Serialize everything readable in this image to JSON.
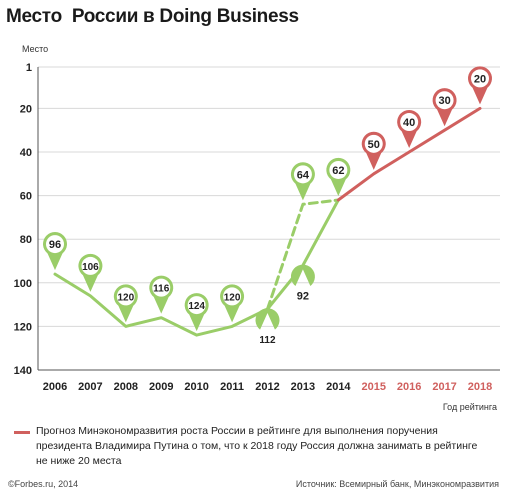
{
  "header": {
    "title": "Место  России в Doing Business"
  },
  "chart_data": {
    "type": "line",
    "title": "Место  России в Doing Business",
    "ylabel": "Место",
    "xlabel": "Год рейтинга",
    "y_inverted": true,
    "ylim": [
      1,
      140
    ],
    "yticks": [
      1,
      20,
      40,
      60,
      80,
      100,
      120,
      140
    ],
    "x": [
      2006,
      2007,
      2008,
      2009,
      2010,
      2011,
      2012,
      2013,
      2014,
      2015,
      2016,
      2017,
      2018
    ],
    "x_colors": [
      "#222222",
      "#222222",
      "#222222",
      "#222222",
      "#222222",
      "#222222",
      "#222222",
      "#222222",
      "#222222",
      "#d0605e",
      "#d0605e",
      "#d0605e",
      "#d0605e"
    ],
    "series": [
      {
        "style": "solid",
        "color": "#9acd68",
        "points": [
          [
            2006,
            96
          ],
          [
            2007,
            106
          ],
          [
            2008,
            120
          ],
          [
            2009,
            116
          ],
          [
            2010,
            124
          ],
          [
            2011,
            120
          ],
          [
            2012,
            112
          ],
          [
            2013,
            92
          ],
          [
            2014,
            62
          ]
        ]
      },
      {
        "style": "dashed",
        "color": "#9acd68",
        "points": [
          [
            2012,
            112
          ],
          [
            2013,
            64
          ],
          [
            2014,
            62
          ]
        ]
      },
      {
        "name": "Прогноз Минэкономразвития роста России в рейтинге для выполнения поручения президента Владимира Путина о том, что к 2018 году Россия должна занимать в рейтинге не ниже 20 места",
        "style": "solid",
        "color": "#d0605e",
        "points": [
          [
            2014,
            62
          ],
          [
            2015,
            50
          ],
          [
            2016,
            40
          ],
          [
            2017,
            30
          ],
          [
            2018,
            20
          ]
        ]
      }
    ],
    "markers": [
      {
        "x": 2006,
        "value": 96,
        "label": "96",
        "dir": "up",
        "color": "#9acd68"
      },
      {
        "x": 2007,
        "value": 106,
        "label": "106",
        "dir": "up",
        "color": "#9acd68"
      },
      {
        "x": 2008,
        "value": 120,
        "label": "120",
        "dir": "up",
        "color": "#9acd68"
      },
      {
        "x": 2009,
        "value": 116,
        "label": "116",
        "dir": "up",
        "color": "#9acd68"
      },
      {
        "x": 2010,
        "value": 124,
        "label": "124",
        "dir": "up",
        "color": "#9acd68"
      },
      {
        "x": 2011,
        "value": 120,
        "label": "120",
        "dir": "up",
        "color": "#9acd68"
      },
      {
        "x": 2012,
        "value": 112,
        "label": "112",
        "dir": "down",
        "color": "#9acd68"
      },
      {
        "x": 2013,
        "value": 64,
        "label": "64",
        "dir": "up",
        "color": "#9acd68"
      },
      {
        "x": 2013,
        "value": 92,
        "label": "92",
        "dir": "down",
        "color": "#9acd68"
      },
      {
        "x": 2014,
        "value": 62,
        "label": "62",
        "dir": "up",
        "color": "#9acd68"
      },
      {
        "x": 2015,
        "value": 50,
        "label": "50",
        "dir": "up",
        "color": "#d0605e"
      },
      {
        "x": 2016,
        "value": 40,
        "label": "40",
        "dir": "up",
        "color": "#d0605e"
      },
      {
        "x": 2017,
        "value": 30,
        "label": "30",
        "dir": "up",
        "color": "#d0605e"
      },
      {
        "x": 2018,
        "value": 20,
        "label": "20",
        "dir": "up",
        "color": "#d0605e"
      }
    ],
    "legend": {
      "placement": "bottom",
      "text": "Прогноз Минэкономразвития роста России в рейтинге для выполнения поручения президента Владимира Путина о том, что к 2018 году Россия должна занимать в рейтинге не ниже 20 места"
    }
  },
  "footer": {
    "copyright": "©Forbes.ru, 2014",
    "source": "Источник: Всемирный банк, Минэкономразвития"
  }
}
